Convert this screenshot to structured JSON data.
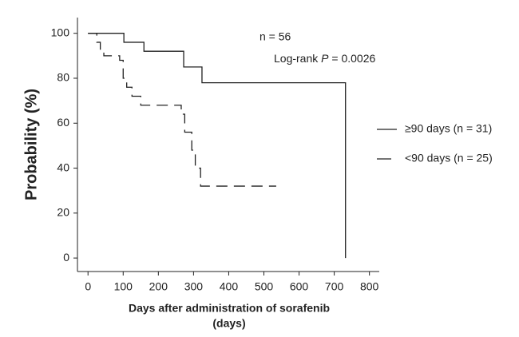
{
  "chart_data": {
    "type": "line",
    "step": true,
    "x_label": "Days after administration of sorafenib",
    "x_label_line2": "(days)",
    "y_label": "Probability (%)",
    "annotations": [
      {
        "text": "n = 56"
      },
      {
        "parts": [
          "Log-rank ",
          "P",
          " = 0.0026"
        ]
      }
    ],
    "xlim": [
      -30,
      828
    ],
    "ylim": [
      -6,
      107
    ],
    "xticks": [
      0,
      100,
      200,
      300,
      400,
      500,
      600,
      700,
      800
    ],
    "yticks": [
      0,
      20,
      40,
      60,
      80,
      100
    ],
    "series": [
      {
        "name": "≥90 days (n = 31)",
        "color": "#222222",
        "dash": "solid",
        "x": [
          0,
          102,
          159,
          272,
          324,
          732,
          732
        ],
        "values": [
          100,
          96,
          92,
          85,
          78,
          78,
          0
        ]
      },
      {
        "name": "<90 days (n = 25)",
        "color": "#222222",
        "dash": "dashed",
        "x": [
          0,
          25,
          35,
          45,
          90,
          100,
          110,
          125,
          150,
          265,
          275,
          295,
          305,
          320,
          535
        ],
        "values": [
          100,
          96,
          92,
          90,
          88,
          80,
          76,
          72,
          68,
          64,
          56,
          48,
          40,
          32,
          32
        ]
      }
    ]
  }
}
